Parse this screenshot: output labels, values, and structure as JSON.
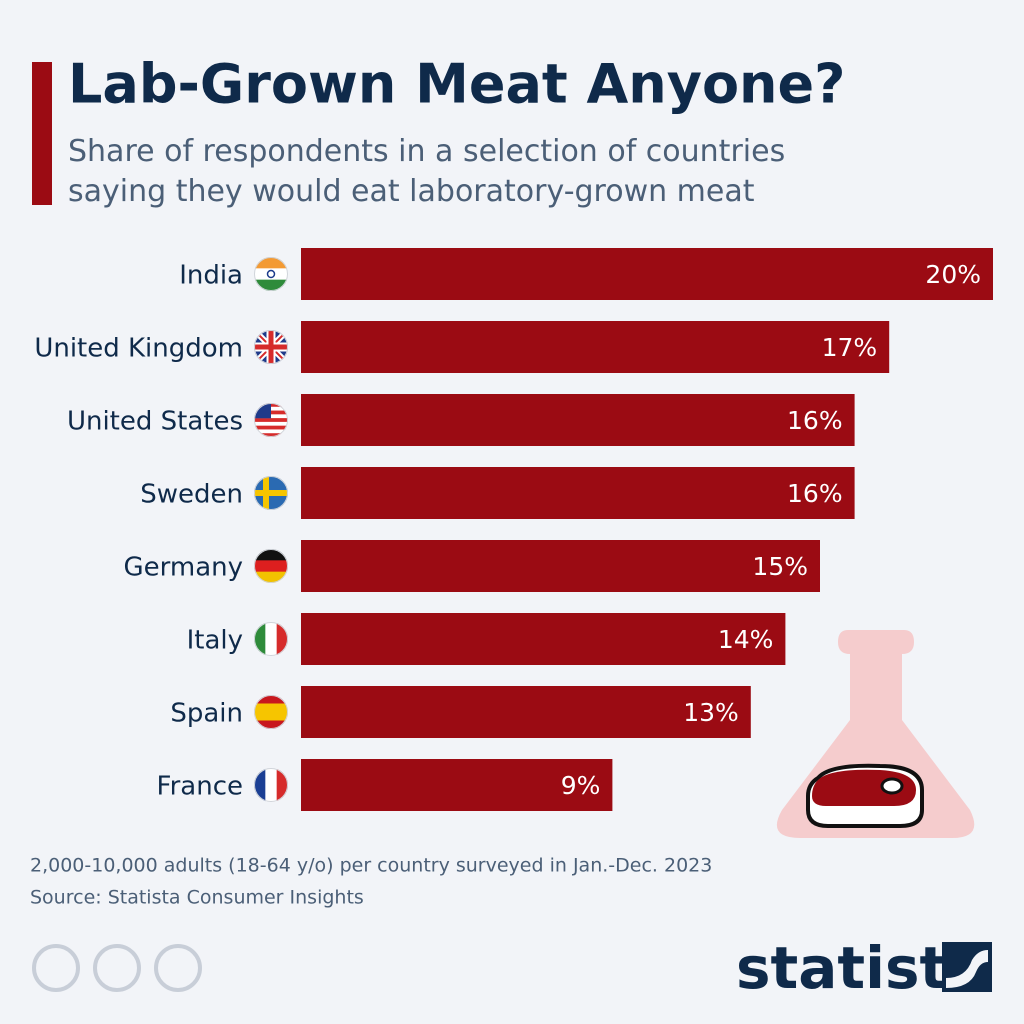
{
  "chart_data": {
    "type": "bar",
    "orientation": "horizontal",
    "title": "Lab-Grown Meat Anyone?",
    "subtitle": "Share of respondents in a selection of countries saying they would eat laboratory-grown meat",
    "categories": [
      "India",
      "United Kingdom",
      "United States",
      "Sweden",
      "Germany",
      "Italy",
      "Spain",
      "France"
    ],
    "values": [
      20,
      17,
      16,
      16,
      15,
      14,
      13,
      9
    ],
    "value_labels": [
      "20%",
      "17%",
      "16%",
      "16%",
      "15%",
      "14%",
      "13%",
      "9%"
    ],
    "color": "#9b0b13",
    "xlim": [
      0,
      20
    ],
    "note": "2,000-10,000 adults (18-64 y/o) per country surveyed in Jan.-Dec. 2023",
    "source": "Source: Statista Consumer Insights",
    "brand": "statista"
  }
}
